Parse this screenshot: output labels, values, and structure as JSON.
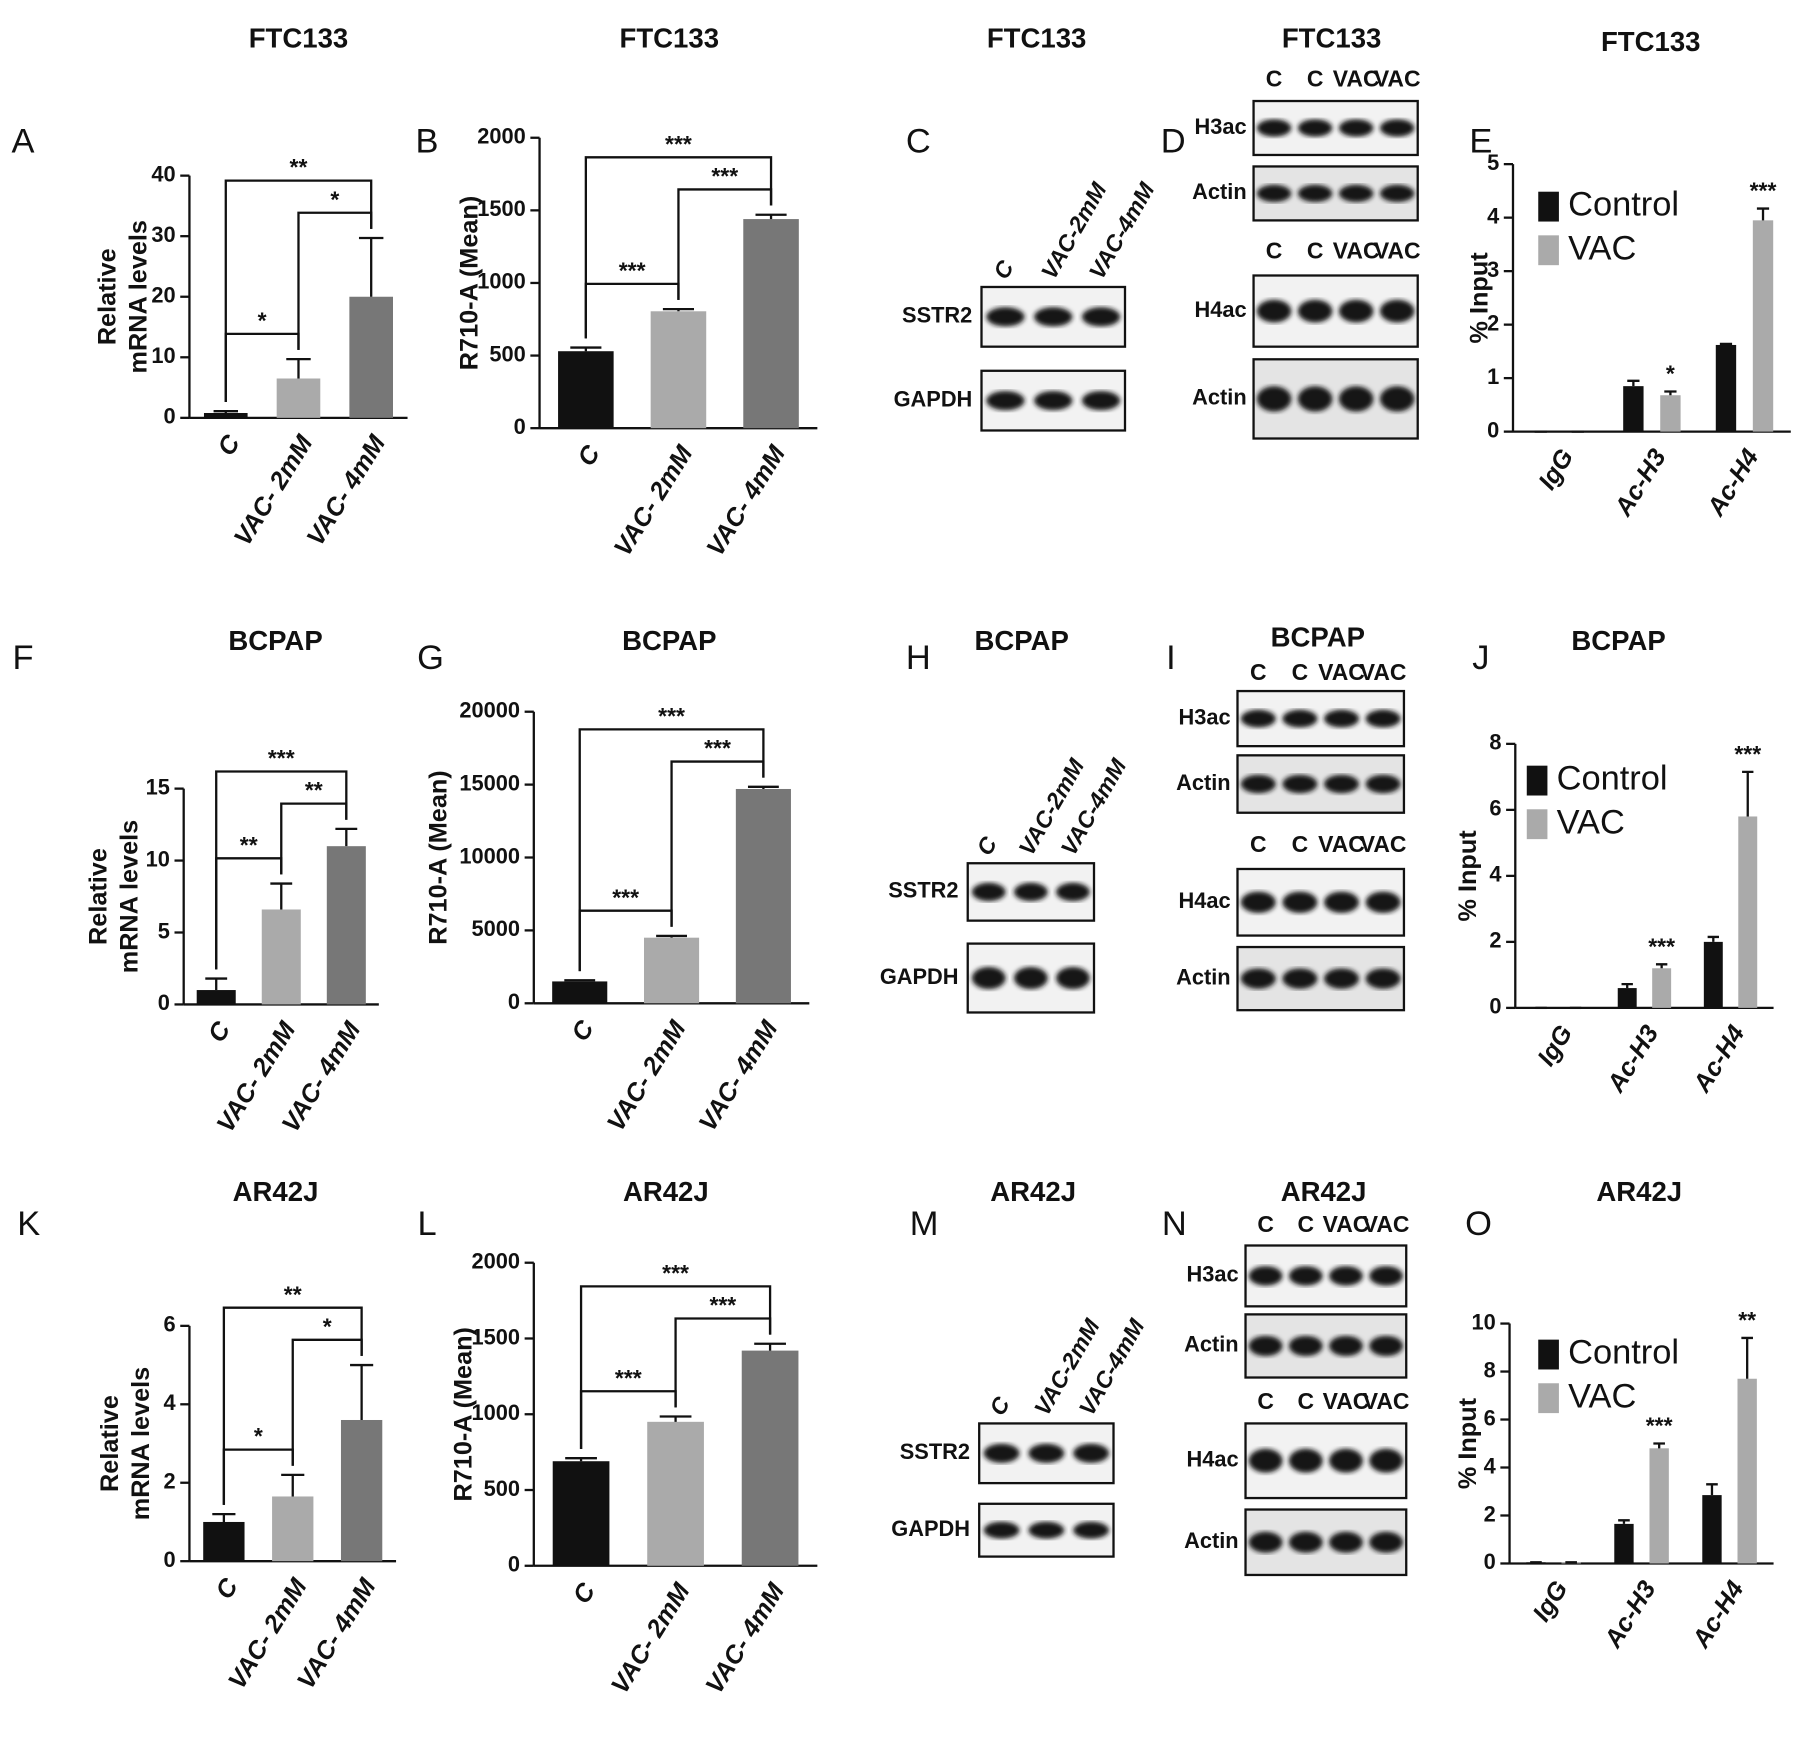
{
  "chart_data": [
    {
      "type": "bar",
      "label": "A",
      "title": "FTC133",
      "y_label": [
        "Relative",
        "mRNA levels"
      ],
      "categories": [
        "C",
        "VAC- 2mM",
        "VAC- 4mM"
      ],
      "values": [
        0.8,
        6.5,
        20
      ],
      "errors": [
        0.3,
        3.2,
        9.7
      ],
      "colors": [
        "#111111",
        "#aaaaaa",
        "#777777"
      ],
      "annotations": [
        "*",
        "*",
        "**"
      ],
      "ylim": [
        0,
        40
      ],
      "yticks": [
        0,
        10,
        20,
        30,
        40
      ]
    },
    {
      "type": "bar",
      "label": "B",
      "title": "FTC133",
      "y_label": "R710-A (Mean)",
      "categories": [
        "C",
        "VAC- 2mM",
        "VAC- 4mM"
      ],
      "values": [
        530,
        805,
        1440
      ],
      "errors": [
        25,
        15,
        30
      ],
      "colors": [
        "#111111",
        "#aaaaaa",
        "#777777"
      ],
      "annotations": [
        "***",
        "***",
        "***"
      ],
      "ylim": [
        0,
        2000
      ],
      "yticks": [
        0,
        500,
        1000,
        1500,
        2000
      ]
    },
    {
      "type": "grouped_bar",
      "label": "E",
      "title": "FTC133",
      "y_label": "% Input",
      "categories": [
        "IgG",
        "Ac-H3",
        "Ac-H4"
      ],
      "series": [
        {
          "name": "Control",
          "color": "#111111",
          "values": [
            0,
            0.85,
            1.62
          ],
          "errors": [
            0,
            0.1,
            0.02
          ]
        },
        {
          "name": "VAC",
          "color": "#aaaaaa",
          "values": [
            0,
            0.68,
            3.95
          ],
          "errors": [
            0,
            0.07,
            0.22
          ],
          "annotations": [
            null,
            "*",
            "***"
          ]
        }
      ],
      "legend": "upper left",
      "ylim": [
        0,
        5
      ],
      "yticks": [
        0,
        1,
        2,
        3,
        4,
        5
      ]
    },
    {
      "type": "bar",
      "label": "F",
      "title": "BCPAP",
      "y_label": [
        "Relative",
        "mRNA levels"
      ],
      "categories": [
        "C",
        "VAC- 2mM",
        "VAC- 4mM"
      ],
      "values": [
        1.0,
        6.6,
        11.0
      ],
      "errors": [
        0.8,
        1.8,
        1.2
      ],
      "colors": [
        "#111111",
        "#aaaaaa",
        "#777777"
      ],
      "annotations": [
        "**",
        "**",
        "***"
      ],
      "ylim": [
        0,
        15
      ],
      "yticks": [
        0,
        5,
        10,
        15
      ]
    },
    {
      "type": "bar",
      "label": "G",
      "title": "BCPAP",
      "y_label": "R710-A (Mean)",
      "categories": [
        "C",
        "VAC- 2mM",
        "VAC- 4mM"
      ],
      "values": [
        1500,
        4500,
        14700
      ],
      "errors": [
        80,
        120,
        150
      ],
      "colors": [
        "#111111",
        "#aaaaaa",
        "#777777"
      ],
      "annotations": [
        "***",
        "***",
        "***"
      ],
      "ylim": [
        0,
        20000
      ],
      "yticks": [
        0,
        5000,
        10000,
        15000,
        20000
      ]
    },
    {
      "type": "grouped_bar",
      "label": "J",
      "title": "BCPAP",
      "y_label": "% Input",
      "categories": [
        "IgG",
        "Ac-H3",
        "Ac-H4"
      ],
      "series": [
        {
          "name": "Control",
          "color": "#111111",
          "values": [
            0,
            0.6,
            2.0
          ],
          "errors": [
            0,
            0.12,
            0.15
          ]
        },
        {
          "name": "VAC",
          "color": "#aaaaaa",
          "values": [
            0,
            1.2,
            5.8
          ],
          "errors": [
            0,
            0.12,
            1.35
          ],
          "annotations": [
            null,
            "***",
            "***"
          ]
        }
      ],
      "legend": "upper left",
      "ylim": [
        0,
        8
      ],
      "yticks": [
        0,
        2,
        4,
        6,
        8
      ]
    },
    {
      "type": "bar",
      "label": "K",
      "title": "AR42J",
      "y_label": [
        "Relative",
        "mRNA levels"
      ],
      "categories": [
        "C",
        "VAC- 2mM",
        "VAC- 4mM"
      ],
      "values": [
        1.0,
        1.65,
        3.6
      ],
      "errors": [
        0.2,
        0.55,
        1.4
      ],
      "colors": [
        "#111111",
        "#aaaaaa",
        "#777777"
      ],
      "annotations": [
        "*",
        "*",
        "**"
      ],
      "ylim": [
        0,
        6
      ],
      "yticks": [
        0,
        2,
        4,
        6
      ]
    },
    {
      "type": "bar",
      "label": "L",
      "title": "AR42J",
      "y_label": "R710-A (Mean)",
      "categories": [
        "C",
        "VAC- 2mM",
        "VAC- 4mM"
      ],
      "values": [
        690,
        950,
        1420
      ],
      "errors": [
        20,
        35,
        45
      ],
      "colors": [
        "#111111",
        "#aaaaaa",
        "#777777"
      ],
      "annotations": [
        "***",
        "***",
        "***"
      ],
      "ylim": [
        0,
        2000
      ],
      "yticks": [
        0,
        500,
        1000,
        1500,
        2000
      ]
    },
    {
      "type": "grouped_bar",
      "label": "O",
      "title": "AR42J",
      "y_label": "% Input",
      "categories": [
        "IgG",
        "Ac-H3",
        "Ac-H4"
      ],
      "series": [
        {
          "name": "Control",
          "color": "#111111",
          "values": [
            0.05,
            1.65,
            2.85
          ],
          "errors": [
            0,
            0.15,
            0.45
          ]
        },
        {
          "name": "VAC",
          "color": "#aaaaaa",
          "values": [
            0.05,
            4.8,
            7.7
          ],
          "errors": [
            0,
            0.2,
            1.7
          ],
          "annotations": [
            null,
            "***",
            "**"
          ]
        }
      ],
      "legend": "upper left",
      "ylim": [
        0,
        10
      ],
      "yticks": [
        0,
        2,
        4,
        6,
        8,
        10
      ]
    }
  ],
  "blots": [
    {
      "label": "C",
      "title": "FTC133",
      "lanes": [
        "C",
        "VAC-2mM",
        "VAC-4mM"
      ],
      "rows": [
        "SSTR2",
        "GAPDH"
      ]
    },
    {
      "label": "H",
      "title": "BCPAP",
      "lanes": [
        "C",
        "VAC-2mM",
        "VAC-4mM"
      ],
      "rows": [
        "SSTR2",
        "GAPDH"
      ]
    },
    {
      "label": "M",
      "title": "AR42J",
      "lanes": [
        "C",
        "VAC-2mM",
        "VAC-4mM"
      ],
      "rows": [
        "SSTR2",
        "GAPDH"
      ]
    }
  ],
  "histone_blots": [
    {
      "label": "D",
      "title": "FTC133",
      "blocks": [
        {
          "lanes": [
            "C",
            "C",
            "VAC",
            "VAC"
          ],
          "rows": [
            "H3ac",
            "Actin"
          ]
        },
        {
          "lanes": [
            "C",
            "C",
            "VAC",
            "VAC"
          ],
          "rows": [
            "H4ac",
            "Actin"
          ]
        }
      ]
    },
    {
      "label": "I",
      "title": "BCPAP",
      "blocks": [
        {
          "lanes": [
            "C",
            "C",
            "VAC",
            "VAC"
          ],
          "rows": [
            "H3ac",
            "Actin"
          ]
        },
        {
          "lanes": [
            "C",
            "C",
            "VAC",
            "VAC"
          ],
          "rows": [
            "H4ac",
            "Actin"
          ]
        }
      ]
    },
    {
      "label": "N",
      "title": "AR42J",
      "blocks": [
        {
          "lanes": [
            "C",
            "C",
            "VAC",
            "VAC"
          ],
          "rows": [
            "H3ac",
            "Actin"
          ]
        },
        {
          "lanes": [
            "C",
            "C",
            "VAC",
            "VAC"
          ],
          "rows": [
            "H4ac",
            "Actin"
          ]
        }
      ]
    }
  ]
}
